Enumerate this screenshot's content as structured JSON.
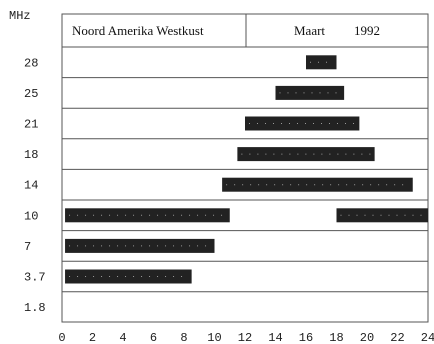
{
  "chart_data": {
    "type": "bar",
    "title": "Noord Amerika Westkust",
    "month": "Maart",
    "year": "1992",
    "ylabel": "MHz",
    "xlabel": "",
    "xlim": [
      0,
      24
    ],
    "x_ticks": [
      "0",
      "2",
      "4",
      "6",
      "8",
      "10",
      "12",
      "14",
      "16",
      "18",
      "20",
      "22",
      "24"
    ],
    "bands": [
      {
        "label": "28",
        "segments": [
          [
            16,
            18
          ]
        ]
      },
      {
        "label": "25",
        "segments": [
          [
            14,
            18.5
          ]
        ]
      },
      {
        "label": "21",
        "segments": [
          [
            12,
            19.5
          ]
        ]
      },
      {
        "label": "18",
        "segments": [
          [
            11.5,
            20.5
          ]
        ]
      },
      {
        "label": "14",
        "segments": [
          [
            10.5,
            23
          ]
        ]
      },
      {
        "label": "10",
        "segments": [
          [
            0.2,
            11
          ],
          [
            18,
            24
          ]
        ]
      },
      {
        "label": "7",
        "segments": [
          [
            0.2,
            10
          ]
        ]
      },
      {
        "label": "3.7",
        "segments": [
          [
            0.2,
            8.5
          ]
        ]
      },
      {
        "label": "1.8",
        "segments": []
      }
    ],
    "colors": {
      "bar": "#222222",
      "line": "#555555"
    },
    "grid": "horizontal"
  }
}
